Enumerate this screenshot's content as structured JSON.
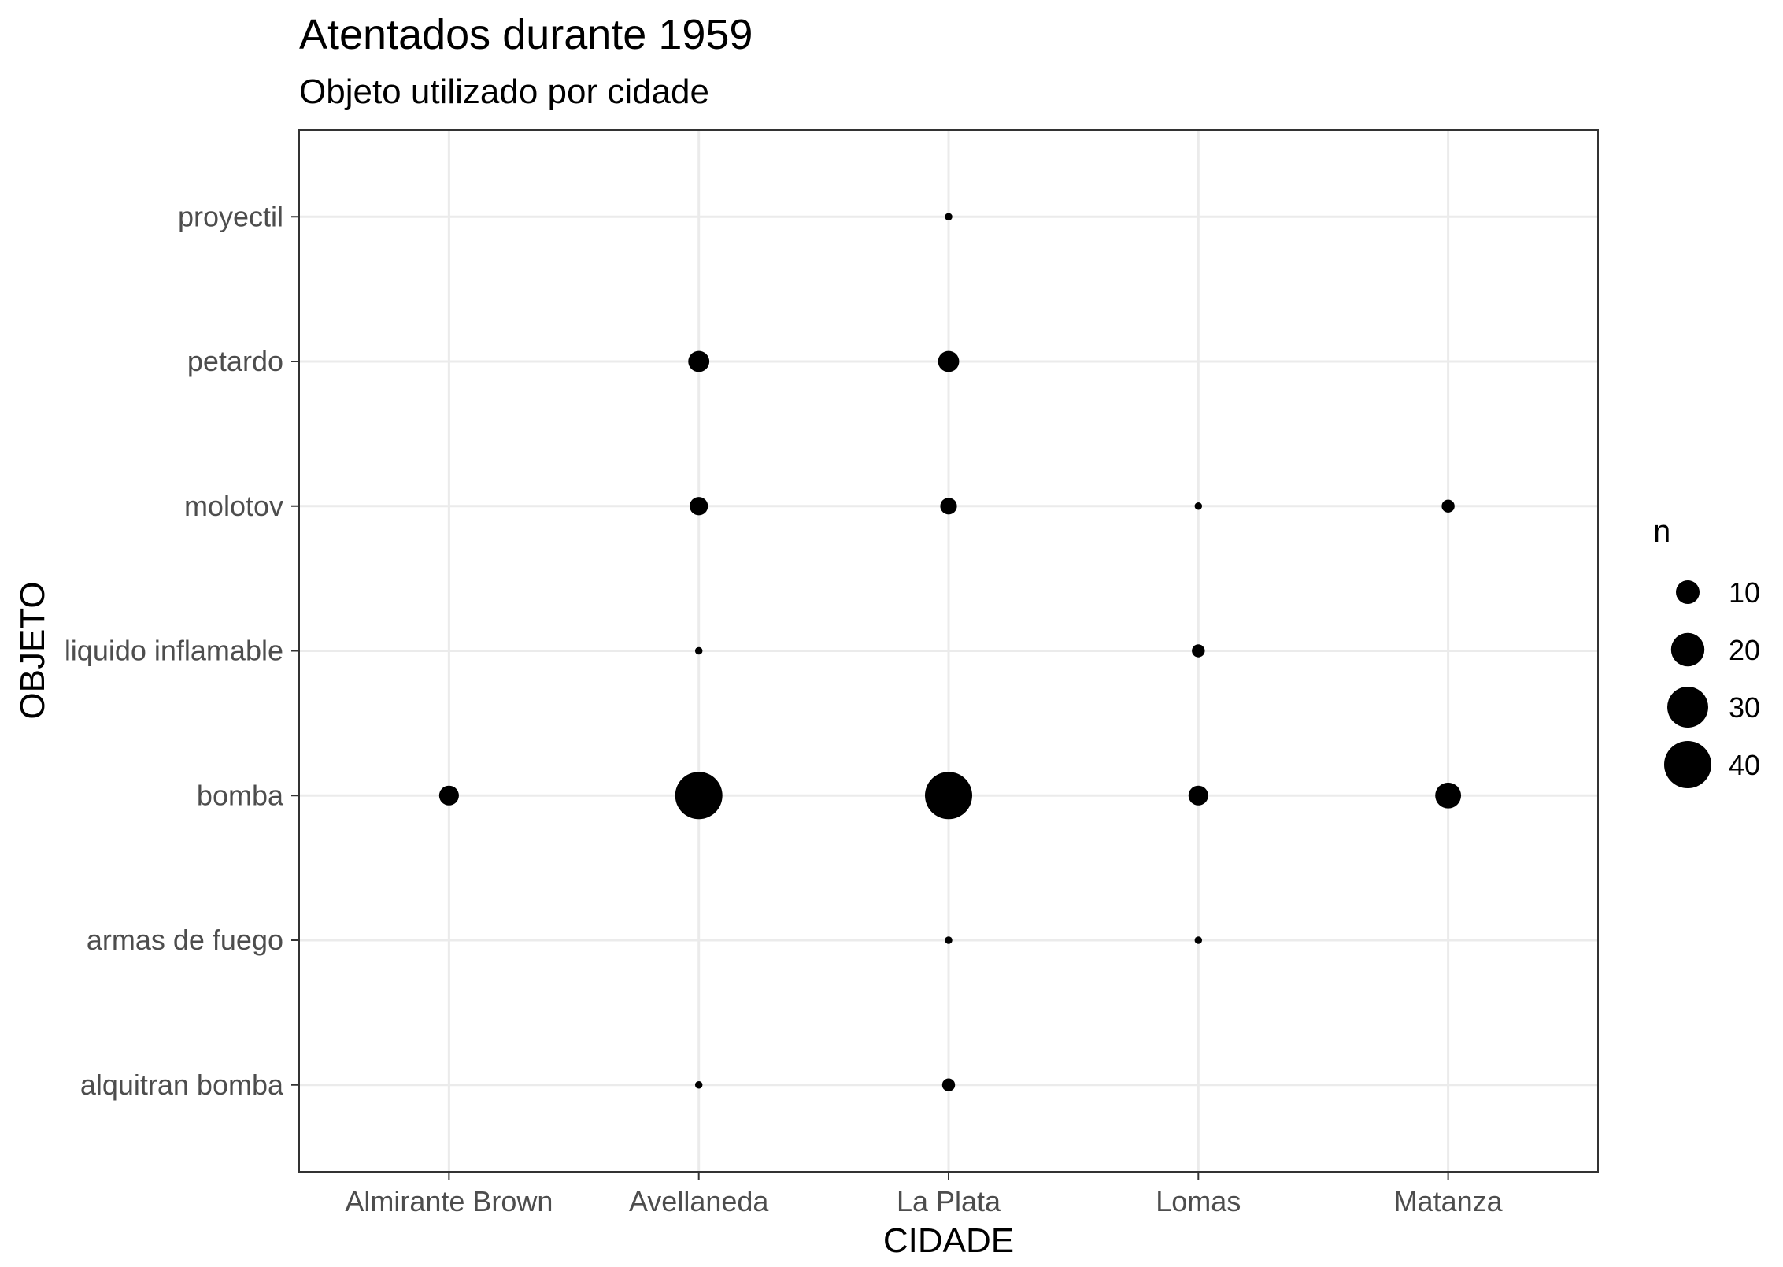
{
  "chart_data": {
    "type": "scatter",
    "title": "Atentados durante 1959",
    "subtitle": "Objeto utilizado por cidade",
    "xlabel": "CIDADE",
    "ylabel": "OBJETO",
    "x_categories": [
      "Almirante Brown",
      "Avellaneda",
      "La Plata",
      "Lomas",
      "Matanza"
    ],
    "y_categories": [
      "alquitran bomba",
      "armas de fuego",
      "bomba",
      "liquido inflamable",
      "molotov",
      "petardo",
      "proyectil"
    ],
    "size_variable": "n",
    "points": [
      {
        "x": "La Plata",
        "y": "proyectil",
        "n": 1
      },
      {
        "x": "Avellaneda",
        "y": "petardo",
        "n": 8
      },
      {
        "x": "La Plata",
        "y": "petardo",
        "n": 8
      },
      {
        "x": "Avellaneda",
        "y": "molotov",
        "n": 6
      },
      {
        "x": "La Plata",
        "y": "molotov",
        "n": 5
      },
      {
        "x": "Lomas",
        "y": "molotov",
        "n": 1
      },
      {
        "x": "Matanza",
        "y": "molotov",
        "n": 3
      },
      {
        "x": "Avellaneda",
        "y": "liquido inflamable",
        "n": 1
      },
      {
        "x": "Lomas",
        "y": "liquido inflamable",
        "n": 3
      },
      {
        "x": "Almirante Brown",
        "y": "bomba",
        "n": 7
      },
      {
        "x": "Avellaneda",
        "y": "bomba",
        "n": 40
      },
      {
        "x": "La Plata",
        "y": "bomba",
        "n": 40
      },
      {
        "x": "Lomas",
        "y": "bomba",
        "n": 7
      },
      {
        "x": "Matanza",
        "y": "bomba",
        "n": 12
      },
      {
        "x": "La Plata",
        "y": "armas de fuego",
        "n": 1
      },
      {
        "x": "Lomas",
        "y": "armas de fuego",
        "n": 1
      },
      {
        "x": "Avellaneda",
        "y": "alquitran bomba",
        "n": 1
      },
      {
        "x": "La Plata",
        "y": "alquitran bomba",
        "n": 3
      }
    ],
    "legend": {
      "title": "n",
      "breaks": [
        10,
        20,
        30,
        40
      ],
      "labels": [
        "10",
        "20",
        "30",
        "40"
      ],
      "position": "right"
    },
    "grid": true,
    "point_color": "#000000"
  }
}
